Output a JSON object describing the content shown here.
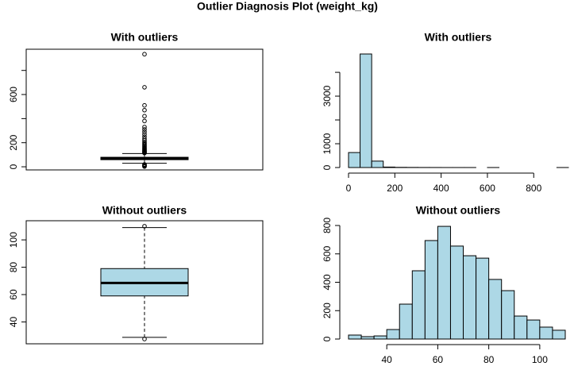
{
  "title": "Outlier Diagnosis Plot (weight_kg)",
  "chart_data": [
    {
      "type": "boxplot",
      "title": "With outliers",
      "color": "#add8e6",
      "ylim": [
        -26,
        976
      ],
      "yticks": [
        0,
        200,
        600
      ],
      "minor_yticks": [
        400,
        800
      ],
      "box": {
        "whisker_low": 29,
        "q1": 59,
        "median": 68,
        "q3": 79,
        "whisker_high": 110,
        "outliers": [
          2,
          5,
          8,
          12,
          16,
          20,
          114,
          118,
          122,
          126,
          130,
          135,
          140,
          146,
          152,
          160,
          168,
          176,
          185,
          195,
          205,
          218,
          232,
          250,
          270,
          290,
          310,
          330,
          380,
          420,
          470,
          510,
          660,
          935
        ]
      }
    },
    {
      "type": "histogram",
      "title": "With outliers",
      "color": "#add8e6",
      "bins": [
        0,
        50,
        100,
        150,
        200,
        250,
        300,
        350,
        400,
        450,
        500,
        550,
        600,
        650,
        700,
        750,
        800,
        850,
        900,
        950
      ],
      "values": [
        630,
        4770,
        270,
        20,
        8,
        5,
        3,
        2,
        1,
        1,
        1,
        0,
        1,
        0,
        0,
        0,
        0,
        0,
        1
      ],
      "xlim": [
        0,
        950
      ],
      "xticks": [
        0,
        200,
        400,
        600,
        800
      ],
      "ylim": [
        0,
        4770
      ],
      "yticks": [
        0,
        1000,
        3000
      ],
      "minor_yticks": [
        2000,
        4000
      ]
    },
    {
      "type": "boxplot",
      "title": "Without outliers",
      "color": "#add8e6",
      "ylim": [
        24,
        114
      ],
      "yticks": [
        40,
        60,
        80,
        100
      ],
      "minor_yticks": [],
      "box": {
        "whisker_low": 28.7,
        "q1": 59,
        "median": 68.5,
        "q3": 79,
        "whisker_high": 109,
        "outliers": [
          27.5,
          110
        ]
      }
    },
    {
      "type": "histogram",
      "title": "Without outliers",
      "color": "#add8e6",
      "bins": [
        25,
        30,
        35,
        40,
        45,
        50,
        55,
        60,
        65,
        70,
        75,
        80,
        85,
        90,
        95,
        100,
        105,
        110
      ],
      "values": [
        28,
        17,
        22,
        67,
        246,
        481,
        694,
        794,
        655,
        587,
        570,
        420,
        341,
        162,
        134,
        84,
        62
      ],
      "xlim": [
        25,
        110
      ],
      "xticks": [
        40,
        60,
        80,
        100
      ],
      "ylim": [
        0,
        800
      ],
      "yticks": [
        0,
        200,
        400,
        600,
        800
      ],
      "minor_yticks": []
    }
  ]
}
